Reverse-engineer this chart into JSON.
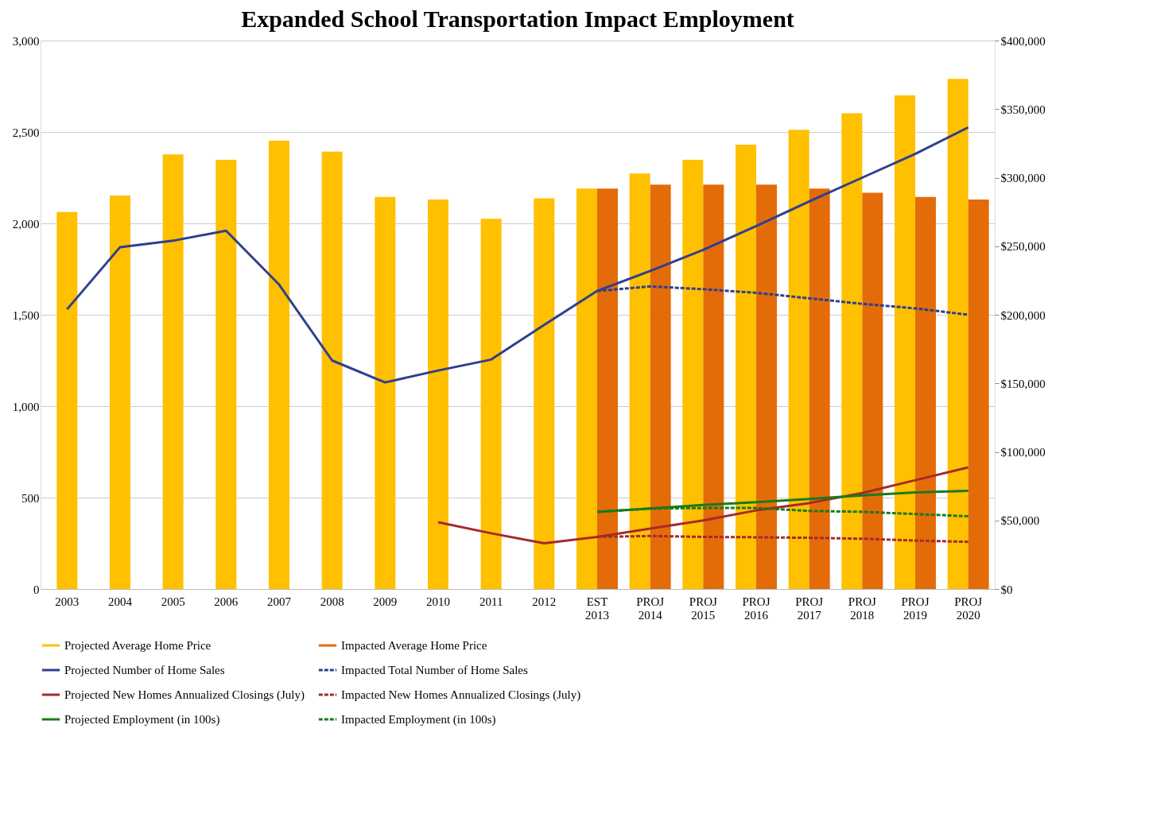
{
  "chart_data": {
    "type": "bar",
    "title": "Expanded School Transportation Impact Employment",
    "categories": [
      "2003",
      "2004",
      "2005",
      "2006",
      "2007",
      "2008",
      "2009",
      "2010",
      "2011",
      "2012",
      "EST 2013",
      "PROJ 2014",
      "PROJ 2015",
      "PROJ 2016",
      "PROJ 2017",
      "PROJ 2018",
      "PROJ 2019",
      "PROJ 2020"
    ],
    "series": [
      {
        "name": "Projected Average Home Price",
        "axis": "y2",
        "color": "#ffc000",
        "values": [
          275000,
          287000,
          317000,
          313000,
          327000,
          319000,
          286000,
          284000,
          270000,
          285000,
          292000,
          303000,
          313000,
          324000,
          335000,
          347000,
          360000,
          372000
        ]
      },
      {
        "name": "Impacted Average Home Price",
        "axis": "y2",
        "color": "#e36c09",
        "values": [
          null,
          null,
          null,
          null,
          null,
          null,
          null,
          null,
          null,
          null,
          292000,
          295000,
          295000,
          295000,
          292000,
          289000,
          286000,
          284000
        ]
      },
      {
        "name": "Projected  Number of  Home Sales",
        "type": "line",
        "line_style": "solid",
        "color": "#2f3f8f",
        "values": [
          1530,
          1870,
          1905,
          1960,
          1665,
          1250,
          1130,
          1195,
          1255,
          1445,
          1630,
          1740,
          1855,
          1985,
          2120,
          2250,
          2380,
          2525
        ]
      },
      {
        "name": "Impacted Total Number of  Home Sales",
        "type": "line",
        "line_style": "dashed",
        "color": "#2f3f8f",
        "values": [
          null,
          null,
          null,
          null,
          null,
          null,
          null,
          null,
          null,
          null,
          1630,
          1655,
          1640,
          1620,
          1590,
          1560,
          1535,
          1500
        ]
      },
      {
        "name": "Projected New Homes Annualized Closings (July)",
        "type": "line",
        "line_style": "solid",
        "color": "#a52a2a",
        "values": [
          null,
          null,
          null,
          null,
          null,
          null,
          null,
          365,
          305,
          250,
          285,
          330,
          375,
          430,
          470,
          525,
          595,
          665
        ]
      },
      {
        "name": "Impacted New Homes Annualized Closings (July)",
        "type": "line",
        "line_style": "dashed",
        "color": "#a52a2a",
        "values": [
          null,
          null,
          null,
          null,
          null,
          null,
          null,
          null,
          null,
          null,
          285,
          290,
          285,
          283,
          280,
          275,
          265,
          258
        ]
      },
      {
        "name": "Projected Employment (in 100s)",
        "type": "line",
        "line_style": "solid",
        "color": "#1a7a1a",
        "values": [
          null,
          null,
          null,
          null,
          null,
          null,
          null,
          null,
          null,
          null,
          422,
          440,
          460,
          475,
          492,
          512,
          528,
          537
        ]
      },
      {
        "name": "Impacted Employment (in 100s)",
        "type": "line",
        "line_style": "dashed",
        "color": "#1a7a1a",
        "values": [
          null,
          null,
          null,
          null,
          null,
          null,
          null,
          null,
          null,
          null,
          422,
          440,
          443,
          443,
          427,
          422,
          410,
          398
        ]
      }
    ],
    "ylim": [
      0,
      3000
    ],
    "yticks": [
      0,
      500,
      {
        "value": 1000,
        "label": "1,000"
      },
      {
        "value": 1500,
        "label": "1,500"
      },
      {
        "value": 2000,
        "label": "2,000"
      },
      {
        "value": 2500,
        "label": "2,500"
      },
      {
        "value": 3000,
        "label": "3,000"
      }
    ],
    "y2lim": [
      0,
      400000
    ],
    "y2ticks": [
      {
        "value": 0,
        "label": "$0"
      },
      {
        "value": 50000,
        "label": "$50,000"
      },
      {
        "value": 100000,
        "label": "$100,000"
      },
      {
        "value": 150000,
        "label": "$150,000"
      },
      {
        "value": 200000,
        "label": "$200,000"
      },
      {
        "value": 250000,
        "label": "$250,000"
      },
      {
        "value": 300000,
        "label": "$300,000"
      },
      {
        "value": 350000,
        "label": "$350,000"
      },
      {
        "value": 400000,
        "label": "$400,000"
      }
    ],
    "grid": "y",
    "legend": "bottom"
  }
}
